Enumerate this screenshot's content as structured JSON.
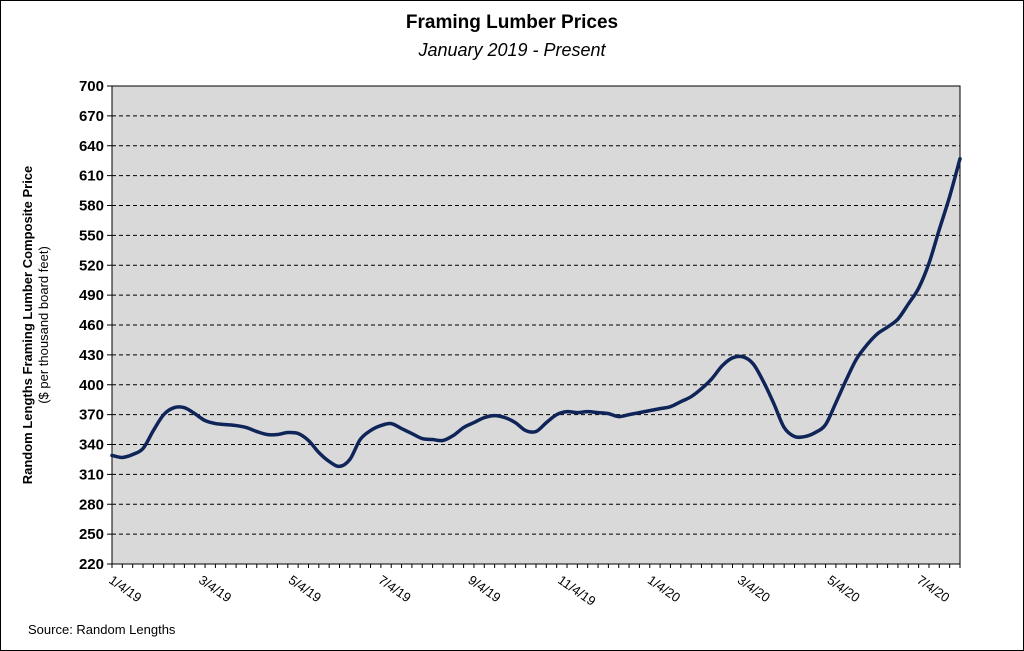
{
  "chart_data": {
    "type": "line",
    "title": "Framing Lumber Prices",
    "subtitle": "January 2019 - Present",
    "ylabel": "Random Lengths  Framing Lumber Composite Price",
    "ylabel_sub": "($ per thousand board feet)",
    "source": "Source: Random Lengths",
    "ylim": [
      220,
      700
    ],
    "yticks": [
      220,
      250,
      280,
      310,
      340,
      370,
      400,
      430,
      460,
      490,
      520,
      550,
      580,
      610,
      640,
      670,
      700
    ],
    "xticks": [
      "1/4/19",
      "3/4/19",
      "5/4/19",
      "7/4/19",
      "9/4/19",
      "11/4/19",
      "1/4/20",
      "3/4/20",
      "5/4/20",
      "7/4/20"
    ],
    "grid": true,
    "colors": {
      "line": "#0f2458",
      "plot_bg": "#d9d9d9",
      "grid": "#000000"
    },
    "series": [
      {
        "values": [
          329,
          327,
          330,
          336,
          354,
          370,
          377,
          377,
          371,
          364,
          361,
          360,
          359,
          357,
          353,
          350,
          350,
          352,
          351,
          344,
          332,
          323,
          318,
          325,
          345,
          354,
          359,
          361,
          356,
          351,
          346,
          345,
          344,
          349,
          357,
          362,
          367,
          369,
          367,
          362,
          354,
          353,
          362,
          370,
          373,
          372,
          373,
          372,
          371,
          368,
          370,
          372,
          374,
          376,
          378,
          383,
          388,
          396,
          406,
          419,
          427,
          428,
          421,
          403,
          381,
          357,
          348,
          348,
          352,
          360,
          382,
          405,
          426,
          440,
          451,
          458,
          466,
          481,
          497,
          522,
          556,
          589,
          627
        ]
      }
    ]
  }
}
